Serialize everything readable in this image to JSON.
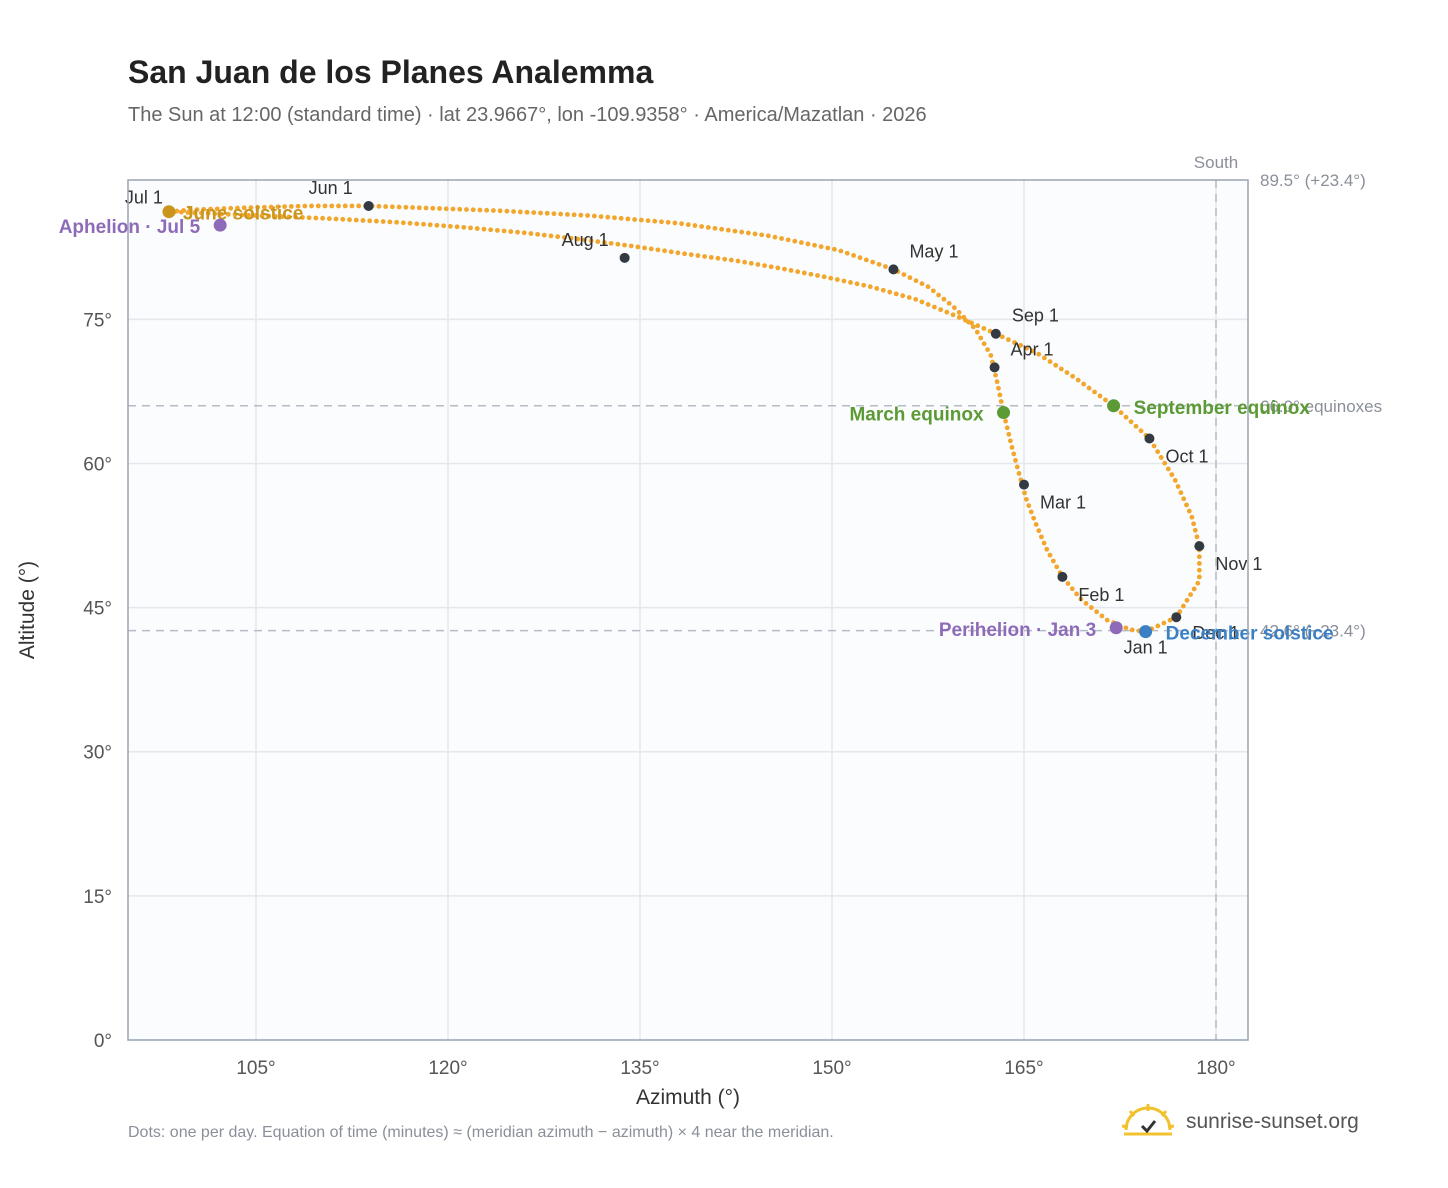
{
  "title": "San Juan de los Planes Analemma",
  "subtitle": "The Sun at 12:00 (standard time) · lat 23.9667°, lon -109.9358° · America/Mazatlan · 2026",
  "footnote": "Dots: one per day. Equation of time (minutes) ≈ (meridian azimuth − azimuth) × 4 near the meridian.",
  "brand": "sunrise-sunset.org",
  "colors": {
    "curve": "#f2a62b",
    "month_marker": "#333a42",
    "equinox": "#5b9a34",
    "solstice_june": "#c9951d",
    "solstice_december": "#3b7fc4",
    "apsis": "#8e6bb8",
    "plot_bg": "#fafcfe",
    "grid": "#e4e7eb",
    "frame": "#9aa4b2",
    "ref_line": "#b5bcc6"
  },
  "chart_data": {
    "type": "scatter",
    "xlabel": "Azimuth (°)",
    "ylabel": "Altitude (°)",
    "xlim": [
      95,
      182.5
    ],
    "ylim": [
      0,
      89.5
    ],
    "xticks": [
      105,
      120,
      135,
      150,
      165,
      180
    ],
    "xtick_labels": [
      "105°",
      "120°",
      "135°",
      "150°",
      "165°",
      "180°"
    ],
    "yticks": [
      0,
      15,
      30,
      45,
      60,
      75
    ],
    "ytick_labels": [
      "0°",
      "15°",
      "30°",
      "45°",
      "60°",
      "75°"
    ],
    "grid": true,
    "south": {
      "label": "South",
      "azimuth": 180
    },
    "reference_lines": [
      {
        "altitude": 89.5,
        "label": "89.5° (+23.4°)"
      },
      {
        "altitude": 66.0,
        "label": "66.0° equinoxes"
      },
      {
        "altitude": 42.6,
        "label": "42.6° (−23.4°)"
      }
    ],
    "series": [
      {
        "kind": "curve",
        "points": [
          [
            174.5,
            42.5
          ],
          [
            176.9,
            44.0
          ],
          [
            178.7,
            47.8
          ],
          [
            178.7,
            51.4
          ],
          [
            178.1,
            54.5
          ],
          [
            176.8,
            58.3
          ],
          [
            174.8,
            62.6
          ],
          [
            172.0,
            66.0
          ],
          [
            169.0,
            68.9
          ],
          [
            166.0,
            71.5
          ],
          [
            162.8,
            73.5
          ],
          [
            159.6,
            75.4
          ],
          [
            156.5,
            77.1
          ],
          [
            153.0,
            78.4
          ],
          [
            149.5,
            79.4
          ],
          [
            146.0,
            80.3
          ],
          [
            142.5,
            81.1
          ],
          [
            138.6,
            81.8
          ],
          [
            134.5,
            82.6
          ],
          [
            130.5,
            83.3
          ],
          [
            126.0,
            84.0
          ],
          [
            121.0,
            84.6
          ],
          [
            116.0,
            85.1
          ],
          [
            110.5,
            85.5
          ],
          [
            105.0,
            85.8
          ],
          [
            100.0,
            86.1
          ],
          [
            98.2,
            86.2
          ],
          [
            100.0,
            86.4
          ],
          [
            104.0,
            86.6
          ],
          [
            109.0,
            86.8
          ],
          [
            113.8,
            86.8
          ],
          [
            118.0,
            86.6
          ],
          [
            124.0,
            86.3
          ],
          [
            131.0,
            85.8
          ],
          [
            138.0,
            85.0
          ],
          [
            145.0,
            83.7
          ],
          [
            150.5,
            82.2
          ],
          [
            154.8,
            80.2
          ],
          [
            157.5,
            78.4
          ],
          [
            159.5,
            76.3
          ],
          [
            161.2,
            74.0
          ],
          [
            162.4,
            71.3
          ],
          [
            162.9,
            68.5
          ],
          [
            163.4,
            65.3
          ],
          [
            164.0,
            62.0
          ],
          [
            164.6,
            59.0
          ],
          [
            165.2,
            56.2
          ],
          [
            165.9,
            53.8
          ],
          [
            166.8,
            51.0
          ],
          [
            168.0,
            48.2
          ],
          [
            169.5,
            45.8
          ],
          [
            171.5,
            43.7
          ],
          [
            173.3,
            42.7
          ],
          [
            174.5,
            42.5
          ]
        ]
      }
    ],
    "month_markers": [
      {
        "label": "Jan 1",
        "az": 174.5,
        "alt": 42.5
      },
      {
        "label": "Feb 1",
        "az": 168.0,
        "alt": 48.2
      },
      {
        "label": "Mar 1",
        "az": 165.0,
        "alt": 57.8
      },
      {
        "label": "Apr 1",
        "az": 162.7,
        "alt": 70.0
      },
      {
        "label": "May 1",
        "az": 154.8,
        "alt": 80.2
      },
      {
        "label": "Jun 1",
        "az": 113.8,
        "alt": 86.8
      },
      {
        "label": "Jul 1",
        "az": 98.2,
        "alt": 86.2
      },
      {
        "label": "Aug 1",
        "az": 133.8,
        "alt": 81.4
      },
      {
        "label": "Sep 1",
        "az": 162.8,
        "alt": 73.5
      },
      {
        "label": "Oct 1",
        "az": 174.8,
        "alt": 62.6
      },
      {
        "label": "Nov 1",
        "az": 178.7,
        "alt": 51.4
      },
      {
        "label": "Dec 1",
        "az": 176.9,
        "alt": 44.0
      }
    ],
    "events": [
      {
        "label": "June solstice",
        "az": 98.2,
        "alt": 86.2,
        "color_key": "solstice_june"
      },
      {
        "label": "December solstice",
        "az": 174.5,
        "alt": 42.5,
        "color_key": "solstice_december"
      },
      {
        "label": "March equinox",
        "az": 163.4,
        "alt": 65.3,
        "color_key": "equinox"
      },
      {
        "label": "September equinox",
        "az": 172.0,
        "alt": 66.0,
        "color_key": "equinox"
      },
      {
        "label": "Aphelion · Jul 5",
        "az": 102.2,
        "alt": 84.8,
        "color_key": "apsis"
      },
      {
        "label": "Perihelion · Jan 3",
        "az": 172.2,
        "alt": 42.9,
        "color_key": "apsis"
      }
    ]
  }
}
